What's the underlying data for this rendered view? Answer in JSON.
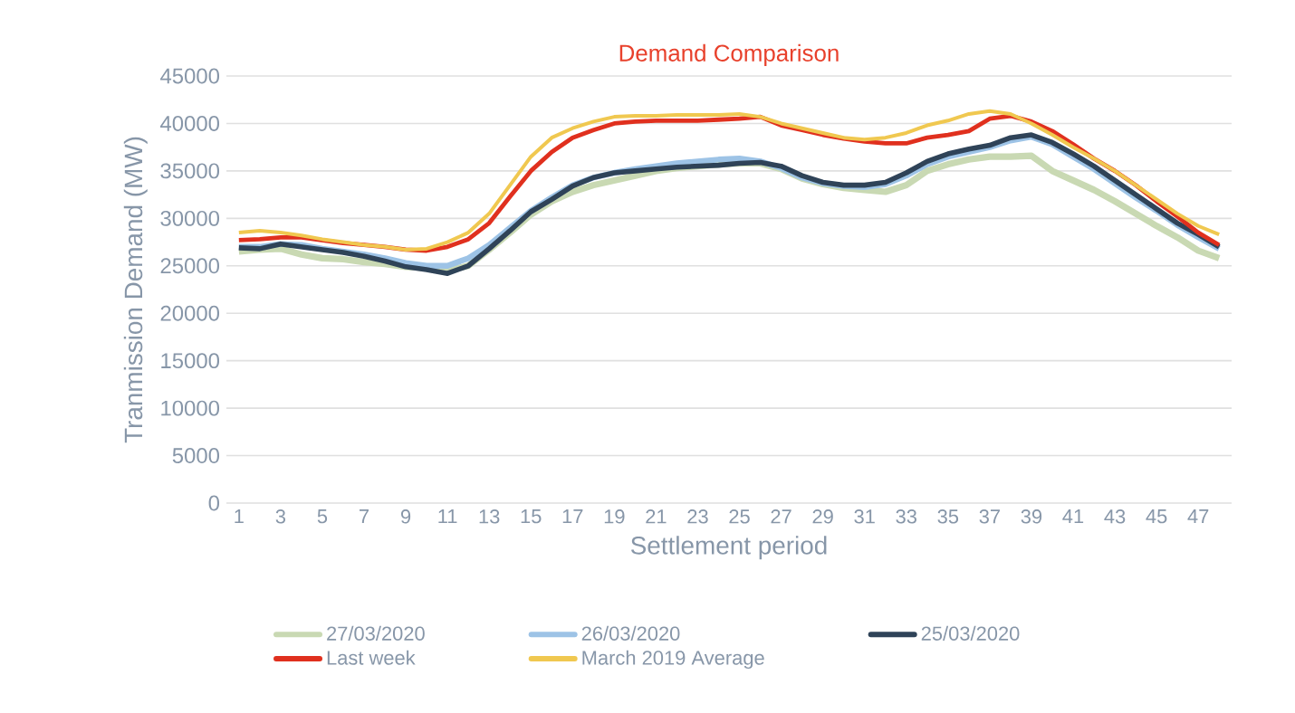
{
  "chart_data": {
    "type": "line",
    "title": "Demand Comparison",
    "xlabel": "Settlement period",
    "ylabel": "Tranmission Demand (MW)",
    "categories": [
      "1",
      null,
      "3",
      null,
      "5",
      null,
      "7",
      null,
      "9",
      null,
      "11",
      null,
      "13",
      null,
      "15",
      null,
      "17",
      null,
      "19",
      null,
      "21",
      null,
      "23",
      null,
      "25",
      null,
      "27",
      null,
      "29",
      null,
      "31",
      null,
      "33",
      null,
      "35",
      null,
      "37",
      null,
      "39",
      null,
      "41",
      null,
      "43",
      null,
      "45",
      null,
      "47",
      null
    ],
    "ylim": [
      0,
      45000
    ],
    "yticks": [
      0,
      5000,
      10000,
      15000,
      20000,
      25000,
      30000,
      35000,
      40000,
      45000
    ],
    "grid": "y",
    "legend": "bottom",
    "series": [
      {
        "name": "27/03/2020",
        "color": "#c9d9b3",
        "values": [
          26500,
          26700,
          26800,
          26200,
          25800,
          25700,
          25400,
          25200,
          24900,
          24800,
          24500,
          25000,
          26700,
          28500,
          30400,
          31800,
          32800,
          33500,
          34000,
          34500,
          35000,
          35300,
          35500,
          35700,
          35800,
          35800,
          35200,
          34200,
          33600,
          33200,
          33000,
          32800,
          33500,
          35000,
          35700,
          36200,
          36500,
          36500,
          36600,
          35000,
          34000,
          33000,
          31800,
          30500,
          29200,
          28000,
          26600,
          25800
        ]
      },
      {
        "name": "26/03/2020",
        "color": "#9dc3e6",
        "values": [
          27000,
          27000,
          27300,
          27200,
          26800,
          26500,
          26200,
          25800,
          25300,
          25000,
          25000,
          25800,
          27200,
          29000,
          30800,
          32200,
          33500,
          34300,
          34800,
          35200,
          35500,
          35800,
          36000,
          36200,
          36300,
          36000,
          35300,
          34300,
          33700,
          33400,
          33300,
          33600,
          34500,
          35700,
          36500,
          37000,
          37500,
          38200,
          38600,
          37800,
          36500,
          35200,
          33700,
          32200,
          30800,
          29300,
          28000,
          26800
        ]
      },
      {
        "name": "25/03/2020",
        "color": "#2f4358",
        "values": [
          26900,
          26800,
          27300,
          27000,
          26700,
          26400,
          26000,
          25500,
          24900,
          24600,
          24200,
          25000,
          26800,
          28700,
          30700,
          32000,
          33400,
          34300,
          34800,
          35000,
          35200,
          35400,
          35500,
          35600,
          35800,
          35900,
          35500,
          34500,
          33800,
          33500,
          33500,
          33800,
          34800,
          36000,
          36800,
          37300,
          37700,
          38500,
          38800,
          38000,
          36800,
          35500,
          34000,
          32500,
          31000,
          29500,
          28300,
          27000
        ]
      },
      {
        "name": "Last week",
        "color": "#e0301e",
        "values": [
          27700,
          27800,
          28000,
          28000,
          27700,
          27400,
          27200,
          27000,
          26700,
          26600,
          27000,
          27800,
          29500,
          32300,
          35000,
          37000,
          38500,
          39300,
          40000,
          40200,
          40300,
          40300,
          40300,
          40400,
          40500,
          40700,
          39800,
          39300,
          38800,
          38400,
          38100,
          37900,
          37900,
          38500,
          38800,
          39200,
          40500,
          40800,
          40200,
          39200,
          37800,
          36300,
          35000,
          33500,
          31800,
          30200,
          28500,
          27200
        ]
      },
      {
        "name": "March 2019 Average",
        "color": "#f0c850",
        "values": [
          28500,
          28700,
          28500,
          28200,
          27800,
          27500,
          27200,
          27000,
          26700,
          26800,
          27500,
          28500,
          30500,
          33500,
          36500,
          38500,
          39500,
          40200,
          40700,
          40800,
          40800,
          40900,
          40900,
          40900,
          41000,
          40700,
          40000,
          39500,
          39000,
          38500,
          38300,
          38500,
          39000,
          39800,
          40300,
          41000,
          41300,
          41000,
          40000,
          38800,
          37500,
          36300,
          35000,
          33500,
          32000,
          30500,
          29200,
          28300
        ]
      }
    ]
  }
}
